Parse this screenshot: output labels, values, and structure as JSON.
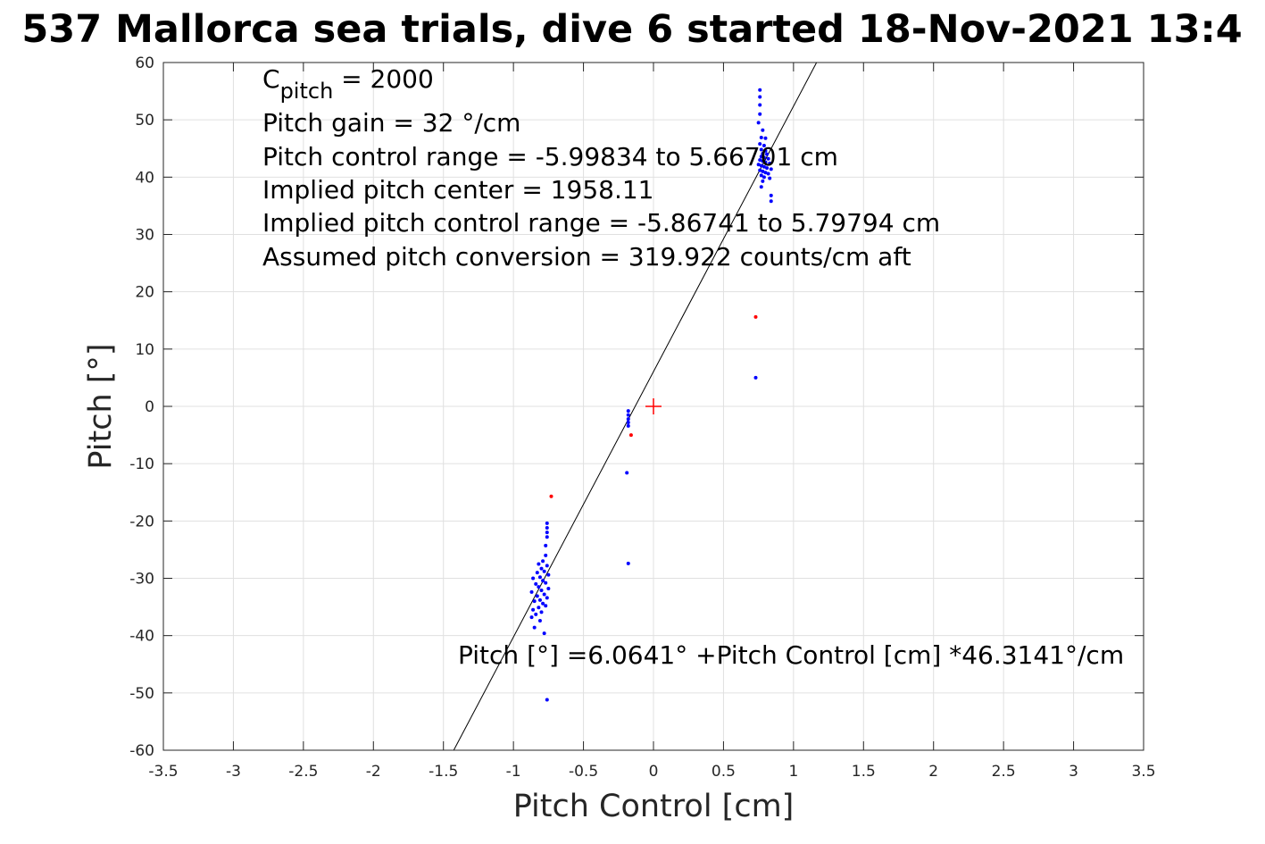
{
  "chart_data": {
    "type": "scatter",
    "title": "537 Mallorca sea trials, dive 6 started 18-Nov-2021 13:4",
    "xlabel": "Pitch Control [cm]",
    "ylabel": "Pitch [°]",
    "xlim": [
      -3.5,
      3.5
    ],
    "ylim": [
      -60,
      60
    ],
    "x_ticks": [
      -3.5,
      -3,
      -2.5,
      -2,
      -1.5,
      -1,
      -0.5,
      0,
      0.5,
      1,
      1.5,
      2,
      2.5,
      3,
      3.5
    ],
    "x_tick_labels": [
      "-3.5",
      "-3",
      "-2.5",
      "-2",
      "-1.5",
      "-1",
      "-0.5",
      "0",
      "0.5",
      "1",
      "1.5",
      "2",
      "2.5",
      "3",
      "3.5"
    ],
    "y_ticks": [
      -60,
      -50,
      -40,
      -30,
      -20,
      -10,
      0,
      10,
      20,
      30,
      40,
      50,
      60
    ],
    "y_tick_labels": [
      "-60",
      "-50",
      "-40",
      "-30",
      "-20",
      "-10",
      "0",
      "10",
      "20",
      "30",
      "40",
      "50",
      "60"
    ],
    "grid": true,
    "colors": {
      "blue_points": "#0000ff",
      "red_points": "#ff0000",
      "fit_line": "#000000",
      "grid": "#e0e0e0"
    },
    "series": [
      {
        "marker": "dot",
        "color": "#0000ff",
        "points": [
          [
            0.76,
            55.2
          ],
          [
            0.76,
            54.0
          ],
          [
            0.76,
            52.6
          ],
          [
            0.76,
            51.0
          ],
          [
            0.75,
            49.5
          ],
          [
            0.78,
            48.2
          ],
          [
            0.77,
            46.9
          ],
          [
            0.8,
            46.8
          ],
          [
            0.76,
            45.8
          ],
          [
            0.79,
            45.5
          ],
          [
            0.77,
            44.8
          ],
          [
            0.8,
            44.6
          ],
          [
            0.78,
            44.1
          ],
          [
            0.81,
            44.0
          ],
          [
            0.77,
            43.6
          ],
          [
            0.79,
            43.4
          ],
          [
            0.82,
            43.2
          ],
          [
            0.76,
            43.0
          ],
          [
            0.78,
            42.8
          ],
          [
            0.8,
            42.6
          ],
          [
            0.83,
            42.4
          ],
          [
            0.75,
            42.2
          ],
          [
            0.77,
            42.0
          ],
          [
            0.79,
            41.8
          ],
          [
            0.81,
            41.6
          ],
          [
            0.84,
            41.4
          ],
          [
            0.76,
            41.2
          ],
          [
            0.78,
            41.0
          ],
          [
            0.8,
            40.8
          ],
          [
            0.82,
            40.6
          ],
          [
            0.77,
            40.3
          ],
          [
            0.79,
            40.0
          ],
          [
            0.83,
            39.8
          ],
          [
            0.78,
            39.3
          ],
          [
            0.77,
            38.3
          ],
          [
            0.84,
            36.8
          ],
          [
            0.84,
            35.8
          ],
          [
            0.73,
            5.0
          ],
          [
            -0.18,
            -0.8
          ],
          [
            -0.18,
            -1.5
          ],
          [
            -0.18,
            -2.2
          ],
          [
            -0.18,
            -2.8
          ],
          [
            -0.18,
            -3.4
          ],
          [
            -0.19,
            -11.6
          ],
          [
            -0.18,
            -27.4
          ],
          [
            -0.76,
            -20.4
          ],
          [
            -0.76,
            -21.2
          ],
          [
            -0.76,
            -22.0
          ],
          [
            -0.76,
            -22.8
          ],
          [
            -0.77,
            -24.3
          ],
          [
            -0.77,
            -26.0
          ],
          [
            -0.79,
            -27.0
          ],
          [
            -0.82,
            -27.5
          ],
          [
            -0.76,
            -27.8
          ],
          [
            -0.8,
            -28.3
          ],
          [
            -0.78,
            -28.8
          ],
          [
            -0.83,
            -29.0
          ],
          [
            -0.75,
            -29.4
          ],
          [
            -0.81,
            -29.8
          ],
          [
            -0.86,
            -30.0
          ],
          [
            -0.79,
            -30.4
          ],
          [
            -0.77,
            -30.8
          ],
          [
            -0.84,
            -31.0
          ],
          [
            -0.82,
            -31.5
          ],
          [
            -0.75,
            -31.8
          ],
          [
            -0.8,
            -32.1
          ],
          [
            -0.87,
            -32.4
          ],
          [
            -0.78,
            -32.8
          ],
          [
            -0.83,
            -33.1
          ],
          [
            -0.76,
            -33.4
          ],
          [
            -0.81,
            -33.8
          ],
          [
            -0.85,
            -34.0
          ],
          [
            -0.79,
            -34.4
          ],
          [
            -0.77,
            -34.8
          ],
          [
            -0.82,
            -35.1
          ],
          [
            -0.86,
            -35.5
          ],
          [
            -0.8,
            -35.9
          ],
          [
            -0.84,
            -36.3
          ],
          [
            -0.87,
            -36.8
          ],
          [
            -0.81,
            -37.4
          ],
          [
            -0.85,
            -38.6
          ],
          [
            -0.78,
            -39.6
          ],
          [
            -0.76,
            -51.2
          ]
        ]
      },
      {
        "marker": "dot",
        "color": "#ff0000",
        "points": [
          [
            0.73,
            15.6
          ],
          [
            -0.73,
            -15.7
          ],
          [
            -0.16,
            -5.0
          ]
        ]
      },
      {
        "marker": "plus",
        "color": "#ff0000",
        "points": [
          [
            0,
            0
          ]
        ]
      }
    ],
    "fit_line": {
      "intercept": 6.0641,
      "slope": 46.3141
    },
    "annotations": {
      "params": {
        "cpitch_prefix": "C",
        "cpitch_sub": "pitch",
        "cpitch_value": " = 2000",
        "lines": [
          "Pitch gain = 32 °/cm",
          "Pitch control range = -5.99834 to 5.66701 cm",
          "Implied pitch center = 1958.11",
          "Implied pitch control range = -5.86741 to 5.79794 cm",
          "Assumed pitch conversion = 319.922 counts/cm aft"
        ]
      },
      "fit_label": "Pitch [°] =6.0641° +Pitch Control [cm] *46.3141°/cm"
    }
  }
}
